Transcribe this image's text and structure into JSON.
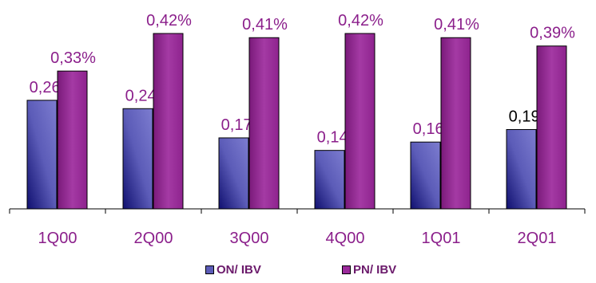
{
  "chart_data": {
    "type": "bar",
    "categories": [
      "1Q00",
      "2Q00",
      "3Q00",
      "4Q00",
      "1Q01",
      "2Q01"
    ],
    "series": [
      {
        "name": "ON/ IBV",
        "values": [
          0.26,
          0.24,
          0.17,
          0.14,
          0.16,
          0.19
        ],
        "labels": [
          "0,26%",
          "0,24%",
          "0,17%",
          "0,14%",
          "0,16%",
          "0,19%"
        ],
        "label_colors": [
          "#8b1f8b",
          "#8b1f8b",
          "#8b1f8b",
          "#8b1f8b",
          "#8b1f8b",
          "#000000"
        ],
        "color": "#5c5cb8"
      },
      {
        "name": "PN/ IBV",
        "values": [
          0.33,
          0.42,
          0.41,
          0.42,
          0.41,
          0.39
        ],
        "labels": [
          "0,33%",
          "0,42%",
          "0,41%",
          "0,42%",
          "0,41%",
          "0,39%"
        ],
        "label_colors": [
          "#8b1f8b",
          "#8b1f8b",
          "#8b1f8b",
          "#8b1f8b",
          "#8b1f8b",
          "#8b1f8b"
        ],
        "color": "#9b2a9b"
      }
    ],
    "ylim": [
      0,
      0.42
    ],
    "grid": false,
    "legend_position": "bottom",
    "colors": {
      "category_label": "#8b1f8b",
      "axis": "#000000"
    }
  }
}
